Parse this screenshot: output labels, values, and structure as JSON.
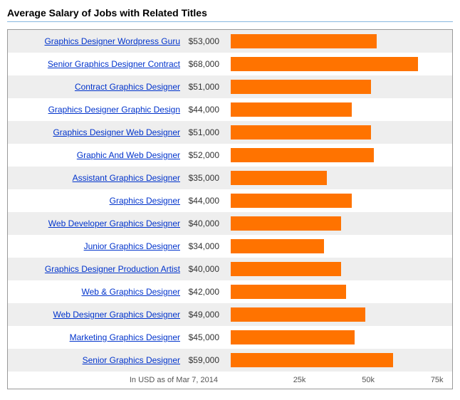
{
  "title": "Average Salary of Jobs with Related Titles",
  "chart": {
    "type": "bar",
    "bar_color": "#ff7300",
    "row_bg_alt": "#eeeeee",
    "row_bg": "#ffffff",
    "max_value": 80000,
    "axis_ticks": [
      {
        "label": "25k",
        "value": 25000
      },
      {
        "label": "50k",
        "value": 50000
      },
      {
        "label": "75k",
        "value": 75000
      }
    ],
    "footer_text": "In USD as of Mar 7, 2014",
    "rows": [
      {
        "label": "Graphics Designer Wordpress Guru",
        "value": 53000,
        "display": "$53,000"
      },
      {
        "label": "Senior Graphics Designer Contract",
        "value": 68000,
        "display": "$68,000"
      },
      {
        "label": "Contract Graphics Designer",
        "value": 51000,
        "display": "$51,000"
      },
      {
        "label": "Graphics Designer Graphic Design",
        "value": 44000,
        "display": "$44,000"
      },
      {
        "label": "Graphics Designer Web Designer",
        "value": 51000,
        "display": "$51,000"
      },
      {
        "label": "Graphic And Web Designer",
        "value": 52000,
        "display": "$52,000"
      },
      {
        "label": "Assistant Graphics Designer",
        "value": 35000,
        "display": "$35,000"
      },
      {
        "label": "Graphics Designer",
        "value": 44000,
        "display": "$44,000"
      },
      {
        "label": "Web Developer Graphics Designer",
        "value": 40000,
        "display": "$40,000"
      },
      {
        "label": "Junior Graphics Designer",
        "value": 34000,
        "display": "$34,000"
      },
      {
        "label": "Graphics Designer Production Artist",
        "value": 40000,
        "display": "$40,000"
      },
      {
        "label": "Web & Graphics Designer",
        "value": 42000,
        "display": "$42,000"
      },
      {
        "label": "Web Designer Graphics Designer",
        "value": 49000,
        "display": "$49,000"
      },
      {
        "label": "Marketing Graphics Designer",
        "value": 45000,
        "display": "$45,000"
      },
      {
        "label": "Senior Graphics Designer",
        "value": 59000,
        "display": "$59,000"
      }
    ]
  }
}
